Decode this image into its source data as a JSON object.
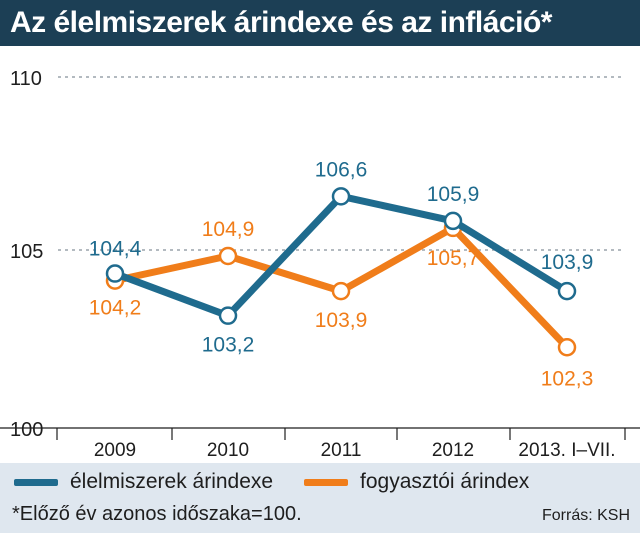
{
  "header": {
    "title": "Az élelmiszerek árindexe és az infláció*"
  },
  "chart_data": {
    "type": "line",
    "categories": [
      "2009",
      "2010",
      "2011",
      "2012",
      "2013. I–VII."
    ],
    "series": [
      {
        "name": "élelmiszerek árindexe",
        "color": "#1f6b8e",
        "values": [
          104.4,
          103.2,
          106.6,
          105.9,
          103.9
        ],
        "labels": [
          "104,4",
          "103,2",
          "106,6",
          "105,9",
          "103,9"
        ]
      },
      {
        "name": "fogyasztói árindex",
        "color": "#f07d1a",
        "values": [
          104.2,
          104.9,
          103.9,
          105.7,
          102.3
        ],
        "labels": [
          "104,2",
          "104,9",
          "103,9",
          "105,7",
          "102,3"
        ]
      }
    ],
    "yticks": [
      "100",
      "105",
      "110"
    ],
    "ylim": [
      100,
      110
    ],
    "grid": "dashed at 105 and 110"
  },
  "footnote": "*Előző év azonos időszaka=100.",
  "source": "Forrás: KSH"
}
